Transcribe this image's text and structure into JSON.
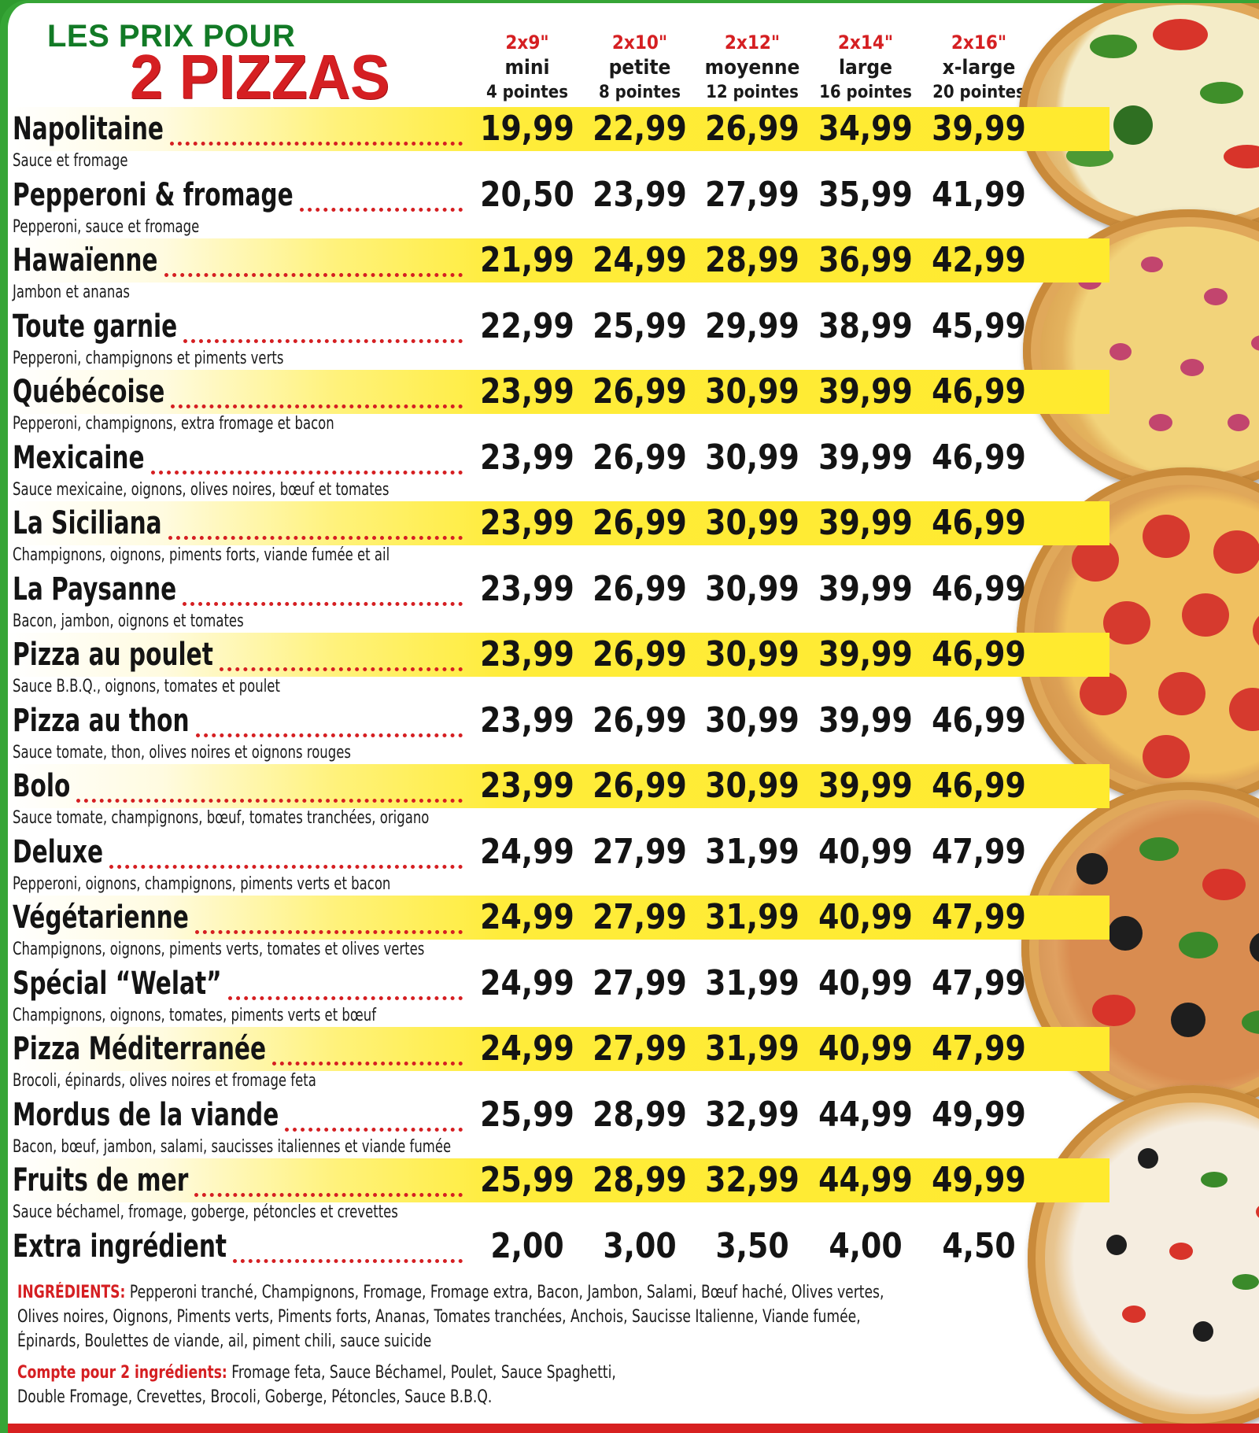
{
  "header": {
    "title_small": "LES PRIX POUR",
    "title_big": "2 PIZZAS"
  },
  "columns": [
    {
      "size": "2x9\"",
      "name": "mini",
      "points": "4 pointes"
    },
    {
      "size": "2x10\"",
      "name": "petite",
      "points": "8 pointes"
    },
    {
      "size": "2x12\"",
      "name": "moyenne",
      "points": "12 pointes"
    },
    {
      "size": "2x14\"",
      "name": "large",
      "points": "16 pointes"
    },
    {
      "size": "2x16\"",
      "name": "x-large",
      "points": "20 pointes"
    }
  ],
  "pizzas": [
    {
      "name": "Napolitaine",
      "desc": "Sauce et fromage",
      "prices": [
        "19,99",
        "22,99",
        "26,99",
        "34,99",
        "39,99"
      ]
    },
    {
      "name": "Pepperoni & fromage",
      "desc": "Pepperoni, sauce et fromage",
      "prices": [
        "20,50",
        "23,99",
        "27,99",
        "35,99",
        "41,99"
      ]
    },
    {
      "name": "Hawaïenne",
      "desc": "Jambon et ananas",
      "prices": [
        "21,99",
        "24,99",
        "28,99",
        "36,99",
        "42,99"
      ]
    },
    {
      "name": "Toute garnie",
      "desc": "Pepperoni, champignons et piments verts",
      "prices": [
        "22,99",
        "25,99",
        "29,99",
        "38,99",
        "45,99"
      ]
    },
    {
      "name": "Québécoise",
      "desc": "Pepperoni, champignons, extra fromage et bacon",
      "prices": [
        "23,99",
        "26,99",
        "30,99",
        "39,99",
        "46,99"
      ]
    },
    {
      "name": "Mexicaine",
      "desc": "Sauce mexicaine, oignons, olives noires, bœuf et tomates",
      "prices": [
        "23,99",
        "26,99",
        "30,99",
        "39,99",
        "46,99"
      ]
    },
    {
      "name": "La Siciliana",
      "desc": "Champignons, oignons, piments forts, viande fumée et ail",
      "prices": [
        "23,99",
        "26,99",
        "30,99",
        "39,99",
        "46,99"
      ]
    },
    {
      "name": "La Paysanne",
      "desc": "Bacon, jambon, oignons et tomates",
      "prices": [
        "23,99",
        "26,99",
        "30,99",
        "39,99",
        "46,99"
      ]
    },
    {
      "name": "Pizza au poulet",
      "desc": "Sauce B.B.Q., oignons, tomates et poulet",
      "prices": [
        "23,99",
        "26,99",
        "30,99",
        "39,99",
        "46,99"
      ]
    },
    {
      "name": "Pizza au thon",
      "desc": "Sauce tomate, thon, olives noires et oignons rouges",
      "prices": [
        "23,99",
        "26,99",
        "30,99",
        "39,99",
        "46,99"
      ]
    },
    {
      "name": "Bolo",
      "desc": "Sauce tomate, champignons, bœuf, tomates tranchées, origano",
      "prices": [
        "23,99",
        "26,99",
        "30,99",
        "39,99",
        "46,99"
      ]
    },
    {
      "name": "Deluxe",
      "desc": "Pepperoni, oignons, champignons, piments verts et bacon",
      "prices": [
        "24,99",
        "27,99",
        "31,99",
        "40,99",
        "47,99"
      ]
    },
    {
      "name": "Végétarienne",
      "desc": "Champignons, oignons, piments verts, tomates et olives vertes",
      "prices": [
        "24,99",
        "27,99",
        "31,99",
        "40,99",
        "47,99"
      ]
    },
    {
      "name": "Spécial “Welat”",
      "desc": "Champignons, oignons, tomates, piments verts et bœuf",
      "prices": [
        "24,99",
        "27,99",
        "31,99",
        "40,99",
        "47,99"
      ]
    },
    {
      "name": "Pizza Méditerranée",
      "desc": "Brocoli, épinards, olives noires et fromage feta",
      "prices": [
        "24,99",
        "27,99",
        "31,99",
        "40,99",
        "47,99"
      ]
    },
    {
      "name": "Mordus de la viande",
      "desc": "Bacon, bœuf, jambon, salami, saucisses italiennes et viande fumée",
      "prices": [
        "25,99",
        "28,99",
        "32,99",
        "44,99",
        "49,99"
      ]
    },
    {
      "name": "Fruits de mer",
      "desc": "Sauce béchamel, fromage, goberge, pétoncles et crevettes",
      "prices": [
        "25,99",
        "28,99",
        "32,99",
        "44,99",
        "49,99"
      ]
    },
    {
      "name": "Extra ingrédient",
      "desc": "",
      "prices": [
        "2,00",
        "3,00",
        "3,50",
        "4,00",
        "4,50"
      ]
    }
  ],
  "ingredients": {
    "label": "INGRÉDIENTS:",
    "line1": " Pepperoni tranché, Champignons, Fromage, Fromage extra, Bacon, Jambon, Salami, Bœuf haché, Olives vertes,",
    "line2": "Olives noires, Oignons, Piments verts, Piments forts, Ananas, Tomates tranchées, Anchois, Saucisse Italienne, Viande fumée,",
    "line3": "Épinards, Boulettes de viande, ail, piment chili, sauce suicide"
  },
  "double_ingredients": {
    "label": "Compte pour 2 ingrédients:",
    "line1": " Fromage feta, Sauce Béchamel, Poulet, Sauce Spaghetti,",
    "line2": "Double Fromage, Crevettes, Brocoli, Goberge, Pétoncles, Sauce B.B.Q."
  },
  "colors": {
    "brand_red": "#d51f22",
    "brand_green": "#127a26",
    "band_yellow": "#ffea2e"
  }
}
